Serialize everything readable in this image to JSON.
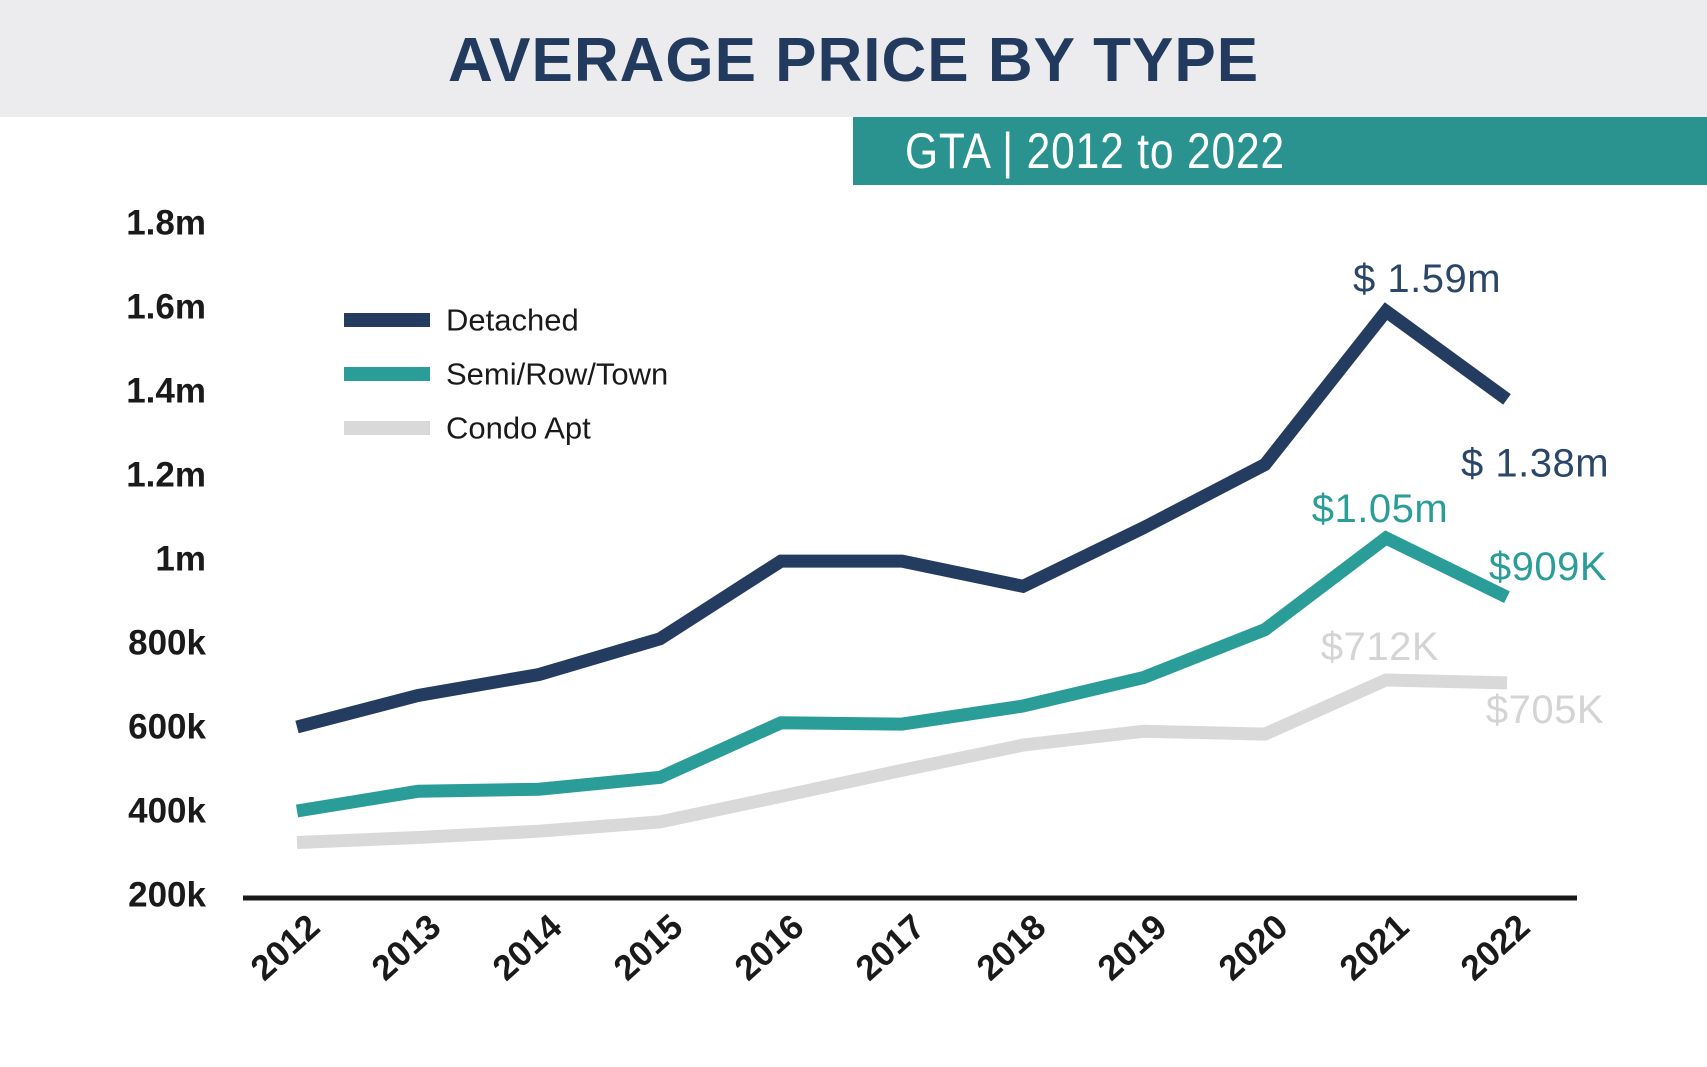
{
  "header": {
    "title": "AVERAGE PRICE BY TYPE"
  },
  "banner": {
    "label": "GTA | 2012 to 2022"
  },
  "colors": {
    "title_navy": "#213A5E",
    "banner_teal": "#2A9390",
    "header_bg": "#ECECEE",
    "axis_black": "#1A1A1A",
    "detached_navy": "#233C5F",
    "semi_teal": "#2A9D99",
    "condo_gray": "#D9D9D9",
    "detached_label": "#2A4668",
    "semi_label": "#2A9D99",
    "condo_label": "#D4D4D4"
  },
  "legend": {
    "items": [
      {
        "label": "Detached",
        "color": "#233C5F"
      },
      {
        "label": "Semi/Row/Town",
        "color": "#2A9D99"
      },
      {
        "label": "Condo Apt",
        "color": "#D9D9D9"
      }
    ]
  },
  "chart_data": {
    "type": "line",
    "title": "AVERAGE PRICE BY TYPE",
    "subtitle": "GTA | 2012 to 2022",
    "unit": "CAD, thousands",
    "x": [
      "2012",
      "2013",
      "2014",
      "2015",
      "2016",
      "2017",
      "2018",
      "2019",
      "2020",
      "2021",
      "2022"
    ],
    "series": [
      {
        "name": "Detached",
        "color": "#233C5F",
        "label_color": "#2A4668",
        "values_k": [
          600,
          675,
          725,
          810,
          995,
          995,
          935,
          1075,
          1225,
          1590,
          1380
        ]
      },
      {
        "name": "Semi/Row/Town",
        "color": "#2A9D99",
        "label_color": "#2A9D99",
        "values_k": [
          400,
          447,
          452,
          480,
          610,
          607,
          650,
          718,
          832,
          1050,
          909
        ]
      },
      {
        "name": "Condo Apt",
        "color": "#D9D9D9",
        "label_color": "#D4D4D4",
        "values_k": [
          325,
          337,
          352,
          374,
          435,
          497,
          557,
          590,
          583,
          712,
          705
        ]
      }
    ],
    "annotations": [
      {
        "text": "$ 1.59m",
        "series": 0,
        "year": "2021"
      },
      {
        "text": "$ 1.38m",
        "series": 0,
        "year": "2022"
      },
      {
        "text": "$1.05m",
        "series": 1,
        "year": "2021"
      },
      {
        "text": "$909K",
        "series": 1,
        "year": "2022"
      },
      {
        "text": "$712K",
        "series": 2,
        "year": "2021"
      },
      {
        "text": "$705K",
        "series": 2,
        "year": "2022"
      }
    ],
    "y_axis": {
      "range_k": [
        200,
        1800
      ],
      "ticks": [
        {
          "label": "1.8m",
          "value_k": 1800
        },
        {
          "label": "1.6m",
          "value_k": 1600
        },
        {
          "label": "1.4m",
          "value_k": 1400
        },
        {
          "label": "1.2m",
          "value_k": 1200
        },
        {
          "label": "1m",
          "value_k": 1000
        },
        {
          "label": "800k",
          "value_k": 800
        },
        {
          "label": "600k",
          "value_k": 600
        },
        {
          "label": "400k",
          "value_k": 400
        },
        {
          "label": "200k",
          "value_k": 200
        }
      ]
    },
    "grid": false,
    "legend_position": "upper-left"
  }
}
